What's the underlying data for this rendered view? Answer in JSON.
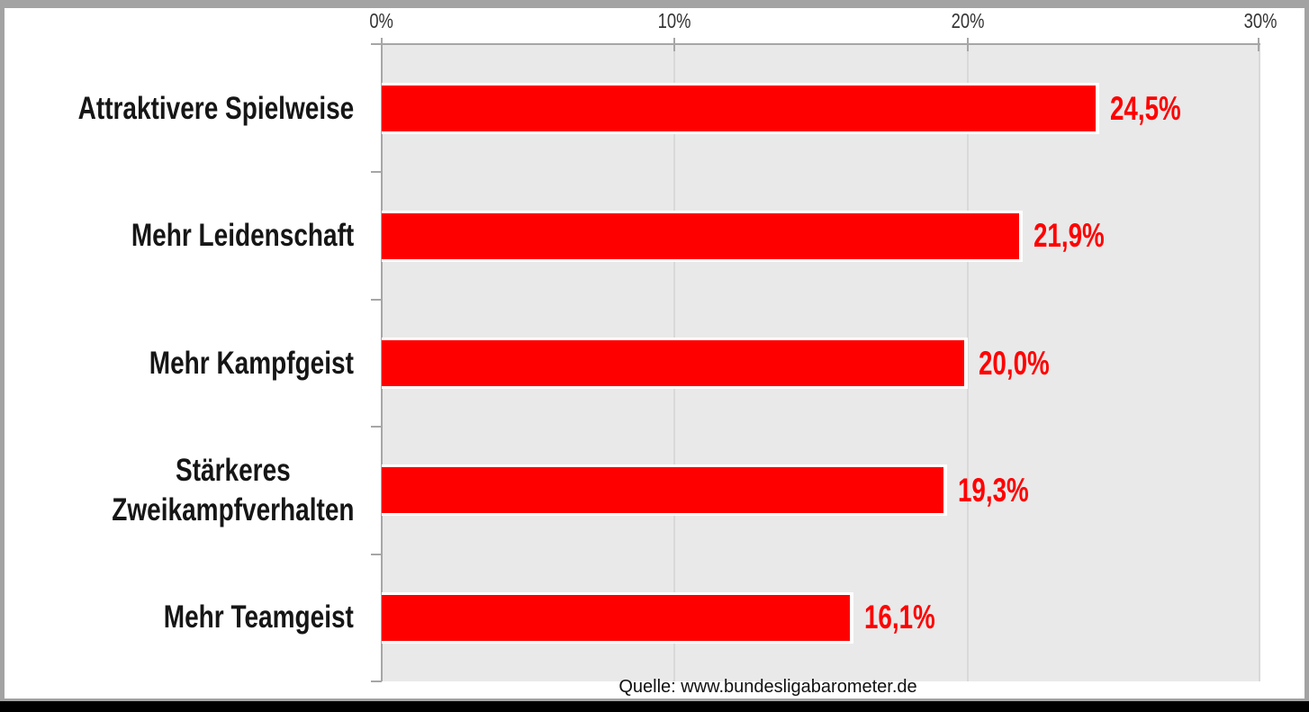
{
  "chart_data": {
    "type": "bar",
    "orientation": "horizontal",
    "categories": [
      "Attraktivere Spielweise",
      "Mehr Leidenschaft",
      "Mehr Kampfgeist",
      "Stärkeres Zweikampfverhalten",
      "Mehr Teamgeist"
    ],
    "category_display_lines": [
      [
        "Attraktivere Spielweise"
      ],
      [
        "Mehr Leidenschaft"
      ],
      [
        "Mehr Kampfgeist"
      ],
      [
        "Stärkeres",
        "Zweikampfverhalten"
      ],
      [
        "Mehr Teamgeist"
      ]
    ],
    "values": [
      24.5,
      21.9,
      20.0,
      19.3,
      16.1
    ],
    "value_labels": [
      "24,5%",
      "21,9%",
      "20,0%",
      "19,3%",
      "16,1%"
    ],
    "x_ticks": [
      {
        "value": 0,
        "label": "0%"
      },
      {
        "value": 10,
        "label": "10%"
      },
      {
        "value": 20,
        "label": "20%"
      },
      {
        "value": 30,
        "label": "30%"
      }
    ],
    "xlim": [
      0,
      30
    ],
    "grid": true,
    "legend": false,
    "title": "",
    "xlabel": "",
    "ylabel": "",
    "source": "Quelle: www.bundesligabarometer.de",
    "colors": {
      "bar": "#ff0000",
      "bar_border": "#ffffff",
      "value_label": "#ff0000",
      "plot_background": "#e9e9e9",
      "gridline": "#d9d9d9",
      "axis": "#a6a6a6",
      "category_label": "#161616",
      "tick_label": "#333333",
      "frame_border": "#a3a3a3",
      "bottom_strip": "#000000"
    }
  }
}
